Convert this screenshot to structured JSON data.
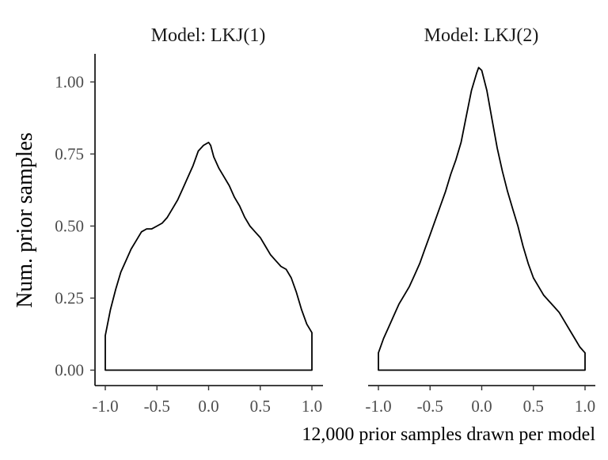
{
  "chart_data": {
    "type": "area",
    "ylabel": "Num. prior samples",
    "caption": "12,000 prior samples drawn per model",
    "ylim": [
      0,
      1.1
    ],
    "xlim": [
      -1.0,
      1.0
    ],
    "y_ticks": [
      "0.00",
      "0.25",
      "0.50",
      "0.75",
      "1.00"
    ],
    "x_ticks": [
      "-1.0",
      "-0.5",
      "0.0",
      "0.5",
      "1.0"
    ],
    "grid": false,
    "legend": "none",
    "line_color": "#000000",
    "panels": [
      {
        "name": "Model: LKJ(1)",
        "series": [
          {
            "x": [
              -1.0,
              -0.95,
              -0.9,
              -0.85,
              -0.8,
              -0.75,
              -0.7,
              -0.65,
              -0.6,
              -0.55,
              -0.5,
              -0.45,
              -0.4,
              -0.35,
              -0.3,
              -0.25,
              -0.2,
              -0.15,
              -0.1,
              -0.05,
              0.0,
              0.02,
              0.05,
              0.1,
              0.15,
              0.2,
              0.25,
              0.3,
              0.35,
              0.4,
              0.45,
              0.5,
              0.55,
              0.6,
              0.65,
              0.7,
              0.75,
              0.8,
              0.85,
              0.9,
              0.95,
              1.0
            ],
            "y": [
              0.12,
              0.21,
              0.28,
              0.34,
              0.38,
              0.42,
              0.45,
              0.48,
              0.49,
              0.49,
              0.5,
              0.51,
              0.53,
              0.56,
              0.59,
              0.63,
              0.67,
              0.71,
              0.76,
              0.78,
              0.79,
              0.78,
              0.74,
              0.7,
              0.67,
              0.64,
              0.6,
              0.57,
              0.53,
              0.5,
              0.48,
              0.46,
              0.43,
              0.4,
              0.38,
              0.36,
              0.35,
              0.32,
              0.27,
              0.21,
              0.16,
              0.13
            ]
          }
        ]
      },
      {
        "name": "Model: LKJ(2)",
        "series": [
          {
            "x": [
              -1.0,
              -0.95,
              -0.9,
              -0.85,
              -0.8,
              -0.75,
              -0.7,
              -0.65,
              -0.6,
              -0.55,
              -0.5,
              -0.45,
              -0.4,
              -0.35,
              -0.3,
              -0.25,
              -0.2,
              -0.15,
              -0.1,
              -0.05,
              -0.03,
              0.0,
              0.05,
              0.1,
              0.15,
              0.2,
              0.25,
              0.3,
              0.35,
              0.4,
              0.45,
              0.5,
              0.55,
              0.6,
              0.65,
              0.7,
              0.75,
              0.8,
              0.85,
              0.9,
              0.95,
              1.0
            ],
            "y": [
              0.06,
              0.11,
              0.15,
              0.19,
              0.23,
              0.26,
              0.29,
              0.33,
              0.37,
              0.42,
              0.47,
              0.52,
              0.57,
              0.62,
              0.68,
              0.73,
              0.79,
              0.88,
              0.97,
              1.03,
              1.05,
              1.04,
              0.97,
              0.87,
              0.77,
              0.69,
              0.62,
              0.56,
              0.5,
              0.43,
              0.37,
              0.32,
              0.29,
              0.26,
              0.24,
              0.22,
              0.2,
              0.17,
              0.14,
              0.11,
              0.08,
              0.06
            ]
          }
        ]
      }
    ]
  }
}
